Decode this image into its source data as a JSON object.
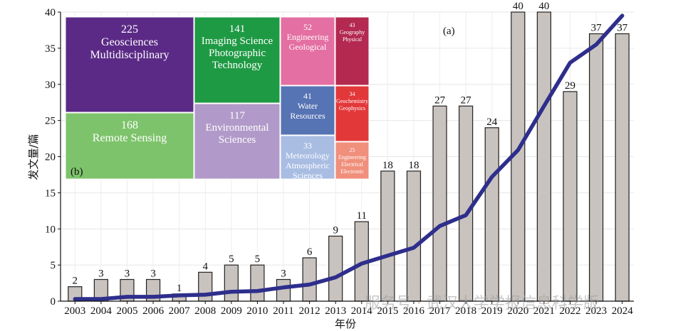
{
  "chart_data": [
    {
      "type": "bar",
      "panel_label": "(a)",
      "xlabel": "年份",
      "ylabel": "发文量/篇",
      "ylim": [
        0,
        40
      ],
      "yticks": [
        0,
        5,
        10,
        15,
        20,
        25,
        30,
        35,
        40
      ],
      "grid": true,
      "categories": [
        "2003",
        "2004",
        "2005",
        "2006",
        "2007",
        "2008",
        "2009",
        "2010",
        "2011",
        "2012",
        "2013",
        "2014",
        "2015",
        "2016",
        "2017",
        "2018",
        "2019",
        "2020",
        "2021",
        "2022",
        "2023",
        "2024"
      ],
      "values": [
        2,
        3,
        3,
        3,
        1,
        4,
        5,
        5,
        3,
        6,
        9,
        11,
        18,
        18,
        27,
        27,
        24,
        40,
        40,
        29,
        37,
        37
      ],
      "bar_color": "#c9c3bf",
      "line": {
        "color": "#2e2e8c",
        "values": [
          0.3,
          0.3,
          0.6,
          0.6,
          0.8,
          0.9,
          1.3,
          1.4,
          1.9,
          2.3,
          3.3,
          5.2,
          6.3,
          7.4,
          10.4,
          11.9,
          17.2,
          20.9,
          27.0,
          33.0,
          35.5,
          39.5
        ]
      }
    },
    {
      "type": "treemap",
      "panel_label": "(b)",
      "items": [
        {
          "value": "225",
          "label": "Geosciences Multidisciplinary",
          "lines": [
            "Geosciences",
            "Multidisciplinary"
          ],
          "color": "#5b2a86"
        },
        {
          "value": "168",
          "label": "Remote Sensing",
          "lines": [
            "Remote Sensing"
          ],
          "color": "#7dc36b"
        },
        {
          "value": "141",
          "label": "Imaging Science Photographic Technology",
          "lines": [
            "Imaging Science",
            "Photographic",
            "Technology"
          ],
          "color": "#1f9a44"
        },
        {
          "value": "117",
          "label": "Environmental Sciences",
          "lines": [
            "Environmental",
            "Sciences"
          ],
          "color": "#b19ac9"
        },
        {
          "value": "52",
          "label": "Engineering Geological",
          "lines": [
            "Engineering",
            "Geological"
          ],
          "color": "#e46fa2"
        },
        {
          "value": "41",
          "label": "Water Resources",
          "lines": [
            "Water",
            "Resources"
          ],
          "color": "#5673b3"
        },
        {
          "value": "33",
          "label": "Meteorology Atmospheric Sciences",
          "lines": [
            "Meteorology",
            "Atmospheric",
            "Sciences"
          ],
          "color": "#a9bde3"
        },
        {
          "value": "43",
          "label": "Geography Physical",
          "lines": [
            "Geography",
            "Physical"
          ],
          "color": "#b3294f"
        },
        {
          "value": "34",
          "label": "Geochemistry Geophysics",
          "lines": [
            "Geochemistry",
            "Geophysics"
          ],
          "color": "#e2383a"
        },
        {
          "value": "25",
          "label": "Engineering Electrical Electronic",
          "lines": [
            "Engineering",
            "Electrical",
            "Electronic"
          ],
          "color": "#f08f7c"
        }
      ]
    }
  ],
  "watermark": "服务号 · 武汉大学学报信息科学版"
}
